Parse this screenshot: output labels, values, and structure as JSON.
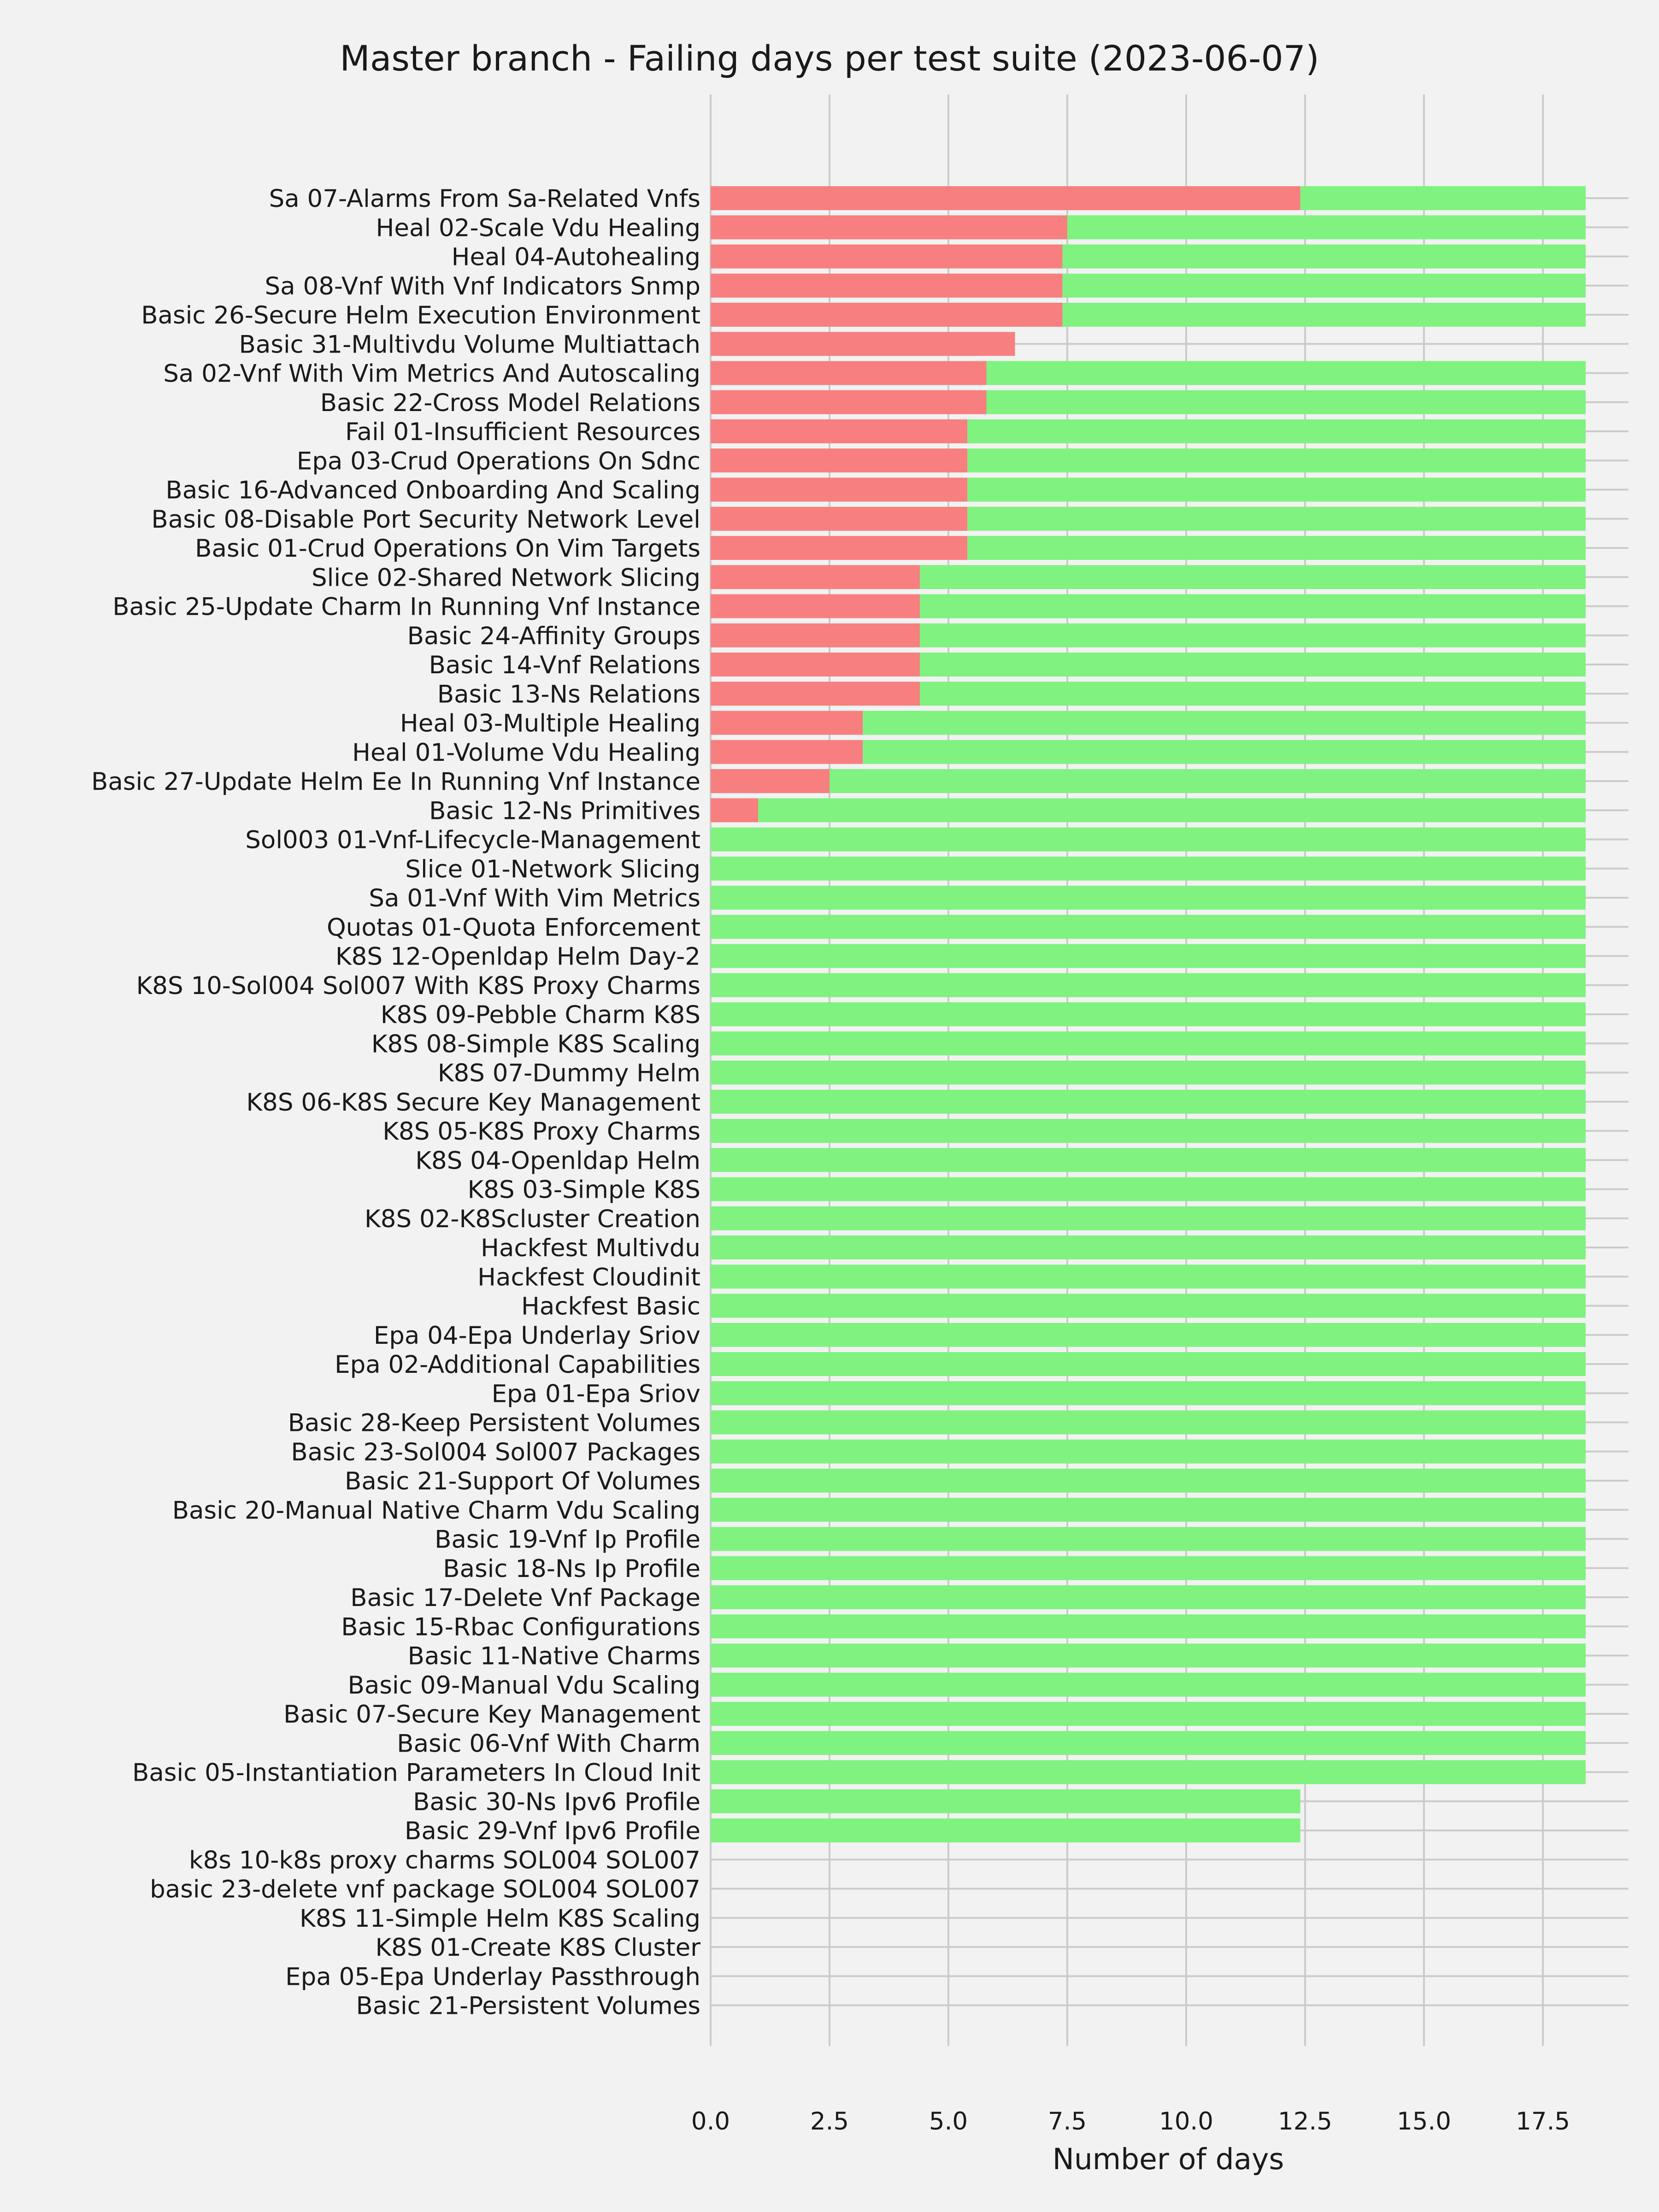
{
  "chart_data": {
    "type": "bar",
    "orientation": "horizontal",
    "stacked": true,
    "title": "Master branch - Failing days per test suite (2023-06-07)",
    "xlabel": "Number of days",
    "ylabel": "",
    "xlim": [
      0,
      19.3
    ],
    "xticks": [
      "0.0",
      "2.5",
      "5.0",
      "7.5",
      "10.0",
      "12.5",
      "15.0",
      "17.5"
    ],
    "grid": true,
    "colors": {
      "failing": "#f87f7f",
      "passing": "#7ff27f",
      "background": "#f2f2f2",
      "grid": "#cbcbcb"
    },
    "categories": [
      "Sa 07-Alarms From Sa-Related Vnfs",
      "Heal 02-Scale Vdu Healing",
      "Heal 04-Autohealing",
      "Sa 08-Vnf With Vnf Indicators Snmp",
      "Basic 26-Secure Helm Execution Environment",
      "Basic 31-Multivdu Volume Multiattach",
      "Sa 02-Vnf With Vim Metrics And Autoscaling",
      "Basic 22-Cross Model Relations",
      "Fail 01-Insufficient Resources",
      "Epa 03-Crud Operations On Sdnc",
      "Basic 16-Advanced Onboarding And Scaling",
      "Basic 08-Disable Port Security Network Level",
      "Basic 01-Crud Operations On Vim Targets",
      "Slice 02-Shared Network Slicing",
      "Basic 25-Update Charm In Running Vnf Instance",
      "Basic 24-Affinity Groups",
      "Basic 14-Vnf Relations",
      "Basic 13-Ns Relations",
      "Heal 03-Multiple Healing",
      "Heal 01-Volume Vdu Healing",
      "Basic 27-Update Helm Ee In Running Vnf Instance",
      "Basic 12-Ns Primitives",
      "Sol003 01-Vnf-Lifecycle-Management",
      "Slice 01-Network Slicing",
      "Sa 01-Vnf With Vim Metrics",
      "Quotas 01-Quota Enforcement",
      "K8S 12-Openldap Helm Day-2",
      "K8S 10-Sol004 Sol007 With K8S Proxy Charms",
      "K8S 09-Pebble Charm K8S",
      "K8S 08-Simple K8S Scaling",
      "K8S 07-Dummy Helm",
      "K8S 06-K8S Secure Key Management",
      "K8S 05-K8S Proxy Charms",
      "K8S 04-Openldap Helm",
      "K8S 03-Simple K8S",
      "K8S 02-K8Scluster Creation",
      "Hackfest Multivdu",
      "Hackfest Cloudinit",
      "Hackfest Basic",
      "Epa 04-Epa Underlay Sriov",
      "Epa 02-Additional Capabilities",
      "Epa 01-Epa Sriov",
      "Basic 28-Keep Persistent Volumes",
      "Basic 23-Sol004 Sol007 Packages",
      "Basic 21-Support Of Volumes",
      "Basic 20-Manual Native Charm Vdu Scaling",
      "Basic 19-Vnf Ip Profile",
      "Basic 18-Ns Ip Profile",
      "Basic 17-Delete Vnf Package",
      "Basic 15-Rbac Configurations",
      "Basic 11-Native Charms",
      "Basic 09-Manual Vdu Scaling",
      "Basic 07-Secure Key Management",
      "Basic 06-Vnf With Charm",
      "Basic 05-Instantiation Parameters In Cloud Init",
      "Basic 30-Ns Ipv6 Profile",
      "Basic 29-Vnf Ipv6 Profile",
      "k8s 10-k8s proxy charms SOL004 SOL007",
      "basic 23-delete vnf package SOL004 SOL007",
      "K8S 11-Simple Helm K8S Scaling",
      "K8S 01-Create K8S Cluster",
      "Epa 05-Epa Underlay Passthrough",
      "Basic 21-Persistent Volumes"
    ],
    "series": [
      {
        "role": "failing",
        "values": [
          12.4,
          7.5,
          7.4,
          7.4,
          7.4,
          6.4,
          5.8,
          5.8,
          5.4,
          5.4,
          5.4,
          5.4,
          5.4,
          4.4,
          4.4,
          4.4,
          4.4,
          4.4,
          3.2,
          3.2,
          2.5,
          1.0,
          0,
          0,
          0,
          0,
          0,
          0,
          0,
          0,
          0,
          0,
          0,
          0,
          0,
          0,
          0,
          0,
          0,
          0,
          0,
          0,
          0,
          0,
          0,
          0,
          0,
          0,
          0,
          0,
          0,
          0,
          0,
          0,
          0,
          0,
          0,
          0,
          0,
          0,
          0,
          0,
          0
        ]
      },
      {
        "role": "passing",
        "values": [
          6.0,
          10.9,
          11.0,
          11.0,
          11.0,
          0,
          12.6,
          12.6,
          13.0,
          13.0,
          13.0,
          13.0,
          13.0,
          14.0,
          14.0,
          14.0,
          14.0,
          14.0,
          15.2,
          15.2,
          15.9,
          17.4,
          18.4,
          18.4,
          18.4,
          18.4,
          18.4,
          18.4,
          18.4,
          18.4,
          18.4,
          18.4,
          18.4,
          18.4,
          18.4,
          18.4,
          18.4,
          18.4,
          18.4,
          18.4,
          18.4,
          18.4,
          18.4,
          18.4,
          18.4,
          18.4,
          18.4,
          18.4,
          18.4,
          18.4,
          18.4,
          18.4,
          18.4,
          18.4,
          18.4,
          12.4,
          12.4,
          0,
          0,
          0,
          0,
          0,
          0
        ]
      }
    ]
  }
}
